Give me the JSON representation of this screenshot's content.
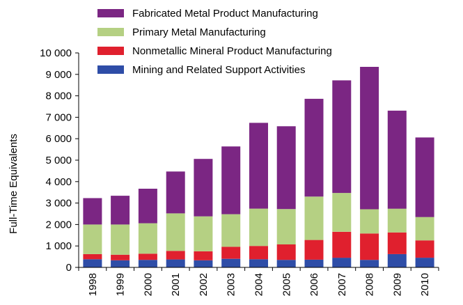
{
  "chart_data": {
    "type": "bar",
    "stacked": true,
    "title": "",
    "xlabel": "",
    "ylabel": "Full-Time Equivalents",
    "ylim": [
      0,
      10000
    ],
    "yticks": [
      "0",
      "1 000",
      "2 000",
      "3 000",
      "4 000",
      "5 000",
      "6 000",
      "7 000",
      "8 000",
      "9 000",
      "10 000"
    ],
    "grid": false,
    "legend_position": "top",
    "categories": [
      "1998",
      "1999",
      "2000",
      "2001",
      "2002",
      "2003",
      "2004",
      "2005",
      "2006",
      "2007",
      "2008",
      "2009",
      "2010"
    ],
    "series": [
      {
        "name": "Mining and Related Support Activities",
        "color": "#2e4da7",
        "values": [
          380,
          330,
          350,
          370,
          330,
          400,
          380,
          350,
          360,
          450,
          350,
          620,
          450
        ]
      },
      {
        "name": "Nonmetallic Mineral Product Manufacturing",
        "color": "#e0202e",
        "values": [
          240,
          260,
          290,
          400,
          420,
          560,
          620,
          720,
          920,
          1210,
          1230,
          1010,
          810
        ]
      },
      {
        "name": "Primary Metal Manufacturing",
        "color": "#b5d083",
        "values": [
          1380,
          1410,
          1420,
          1750,
          1630,
          1520,
          1740,
          1650,
          2020,
          1810,
          1130,
          1110,
          1090
        ]
      },
      {
        "name": "Fabricated Metal Product Manufacturing",
        "color": "#7b2683",
        "values": [
          1230,
          1340,
          1610,
          1950,
          2680,
          3160,
          4000,
          3860,
          4560,
          5250,
          6640,
          4570,
          3710
        ]
      }
    ]
  }
}
